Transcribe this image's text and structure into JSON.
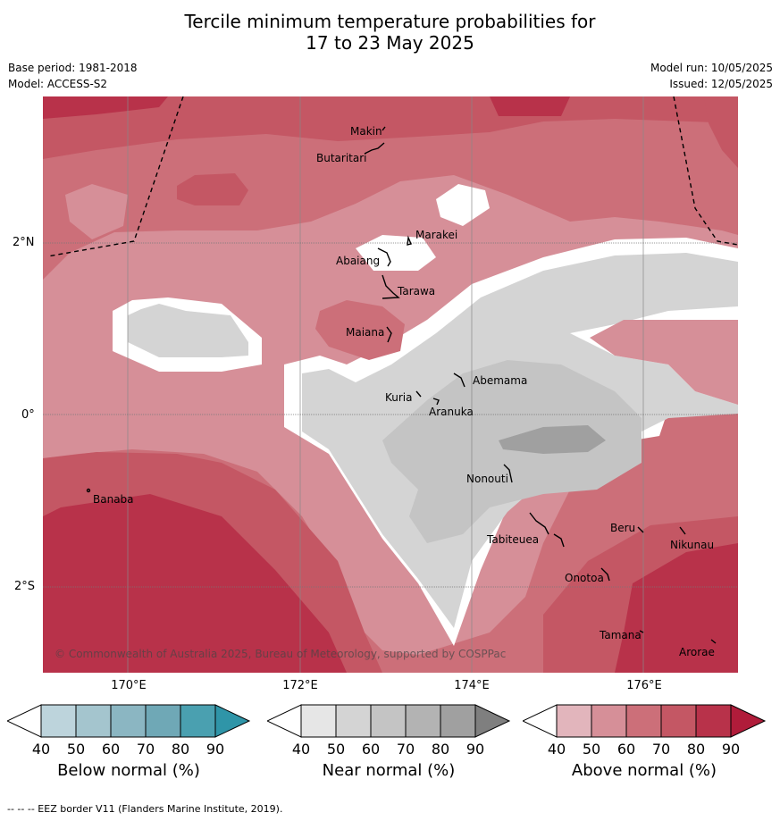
{
  "title_line1": "Tercile minimum temperature probabilities for",
  "title_line2": "17 to 23 May 2025",
  "base_period": "Base period: 1981-2018",
  "model": "Model: ACCESS-S2",
  "model_run": "Model run: 10/05/2025",
  "issued": "Issued: 12/05/2025",
  "lat_labels": [
    "2°N",
    "0°",
    "2°S"
  ],
  "lon_labels": [
    "170°E",
    "172°E",
    "174°E",
    "176°E"
  ],
  "places": [
    "Makin",
    "Butaritari",
    "Marakei",
    "Abaiang",
    "Tarawa",
    "Maiana",
    "Abemama",
    "Kuria",
    "Aranuka",
    "Nonouti",
    "Tabiteuea",
    "Beru",
    "Nikunau",
    "Onotoa",
    "Tamana",
    "Arorae",
    "Banaba"
  ],
  "copyright": "© Commonwealth of Australia 2025, Bureau of Meteorology, supported by COSPPac",
  "colorbars": [
    {
      "title": "Below normal (%)",
      "ticks": [
        "40",
        "50",
        "60",
        "70",
        "80",
        "90"
      ],
      "colors": [
        "#bdd4dc",
        "#a4c5ce",
        "#8bb6c2",
        "#6fa8b6",
        "#4aa0b0",
        "#2f95a8"
      ]
    },
    {
      "title": "Near normal (%)",
      "ticks": [
        "40",
        "50",
        "60",
        "70",
        "80",
        "90"
      ],
      "colors": [
        "#e6e6e6",
        "#d4d4d4",
        "#c4c4c4",
        "#b3b3b3",
        "#a0a0a0",
        "#7f7f7f"
      ]
    },
    {
      "title": "Above normal (%)",
      "ticks": [
        "40",
        "50",
        "60",
        "70",
        "80",
        "90"
      ],
      "colors": [
        "#e2b5bc",
        "#d68f98",
        "#cc6f79",
        "#c45764",
        "#b8324a",
        "#b01c3a"
      ]
    }
  ],
  "footer": "--  --  -- EEZ border V11 (Flanders Marine Institute, 2019)."
}
